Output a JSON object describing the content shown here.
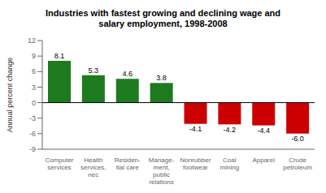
{
  "chart_data": {
    "type": "bar",
    "title": "Industries with fastest growing and declining wage and\nsalary employment, 1998-2008",
    "categories": [
      "Computer\nservices",
      "Health\nservices,\nnec",
      "Residen-\ntial care",
      "Manage-\nment,\npublic\nrelations",
      "Nonrubber\nfootwear",
      "Coal\nmining",
      "Apparel",
      "Crude\npetroleum"
    ],
    "values": [
      8.1,
      5.3,
      4.6,
      3.8,
      -4.1,
      -4.2,
      -4.4,
      -6.0
    ],
    "value_labels": [
      "8.1",
      "5.3",
      "4.6",
      "3.8",
      "-4.1",
      "-4.2",
      "-4.4",
      "-6.0"
    ],
    "colors": [
      "#1e7a1e",
      "#1e7a1e",
      "#1e7a1e",
      "#1e7a1e",
      "#cc0000",
      "#cc0000",
      "#cc0000",
      "#cc0000"
    ],
    "ylabel": "Annual percent change",
    "ylim": [
      -9,
      12
    ],
    "yticks": [
      -9,
      -6,
      -3,
      0,
      3,
      6,
      9,
      12
    ],
    "grid": false,
    "data_labels": true
  }
}
